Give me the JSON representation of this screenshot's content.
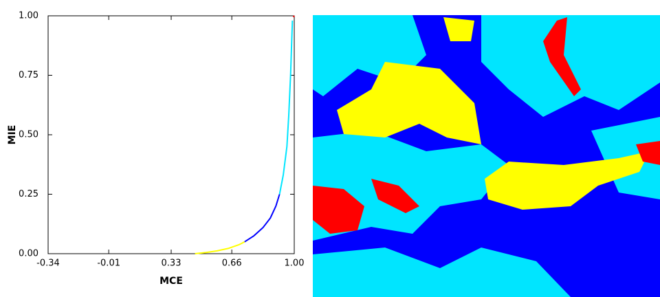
{
  "chart_data": {
    "type": "line",
    "x_label": "MCE",
    "y_label": "MIE",
    "xlim": [
      -0.34,
      1.0
    ],
    "xticks": [
      -0.34,
      -0.01,
      0.33,
      0.66,
      {
        "value": 1.0,
        "label": "1.00"
      }
    ],
    "ylim": [
      0,
      1.0
    ],
    "yticks": [
      {
        "value": 0,
        "label": "0.00"
      },
      0.25,
      {
        "value": 0.5,
        "label": "0.50"
      },
      0.75,
      {
        "value": 1.0,
        "label": "1.00"
      }
    ],
    "series": [
      {
        "color": "#ffff00",
        "x": [
          0.46,
          0.52,
          0.58,
          0.64,
          0.7,
          0.73
        ],
        "values": [
          0,
          0.005,
          0.012,
          0.022,
          0.038,
          0.05
        ]
      },
      {
        "color": "#0000ff",
        "x": [
          0.73,
          0.78,
          0.83,
          0.87,
          0.9,
          0.92
        ],
        "values": [
          0.05,
          0.075,
          0.11,
          0.15,
          0.2,
          0.25
        ]
      },
      {
        "color": "#00e5ff",
        "x": [
          0.92,
          0.94,
          0.96,
          0.97,
          0.98,
          0.99
        ],
        "values": [
          0.25,
          0.33,
          0.45,
          0.58,
          0.75,
          0.98
        ]
      },
      {
        "color": "#ff0000",
        "x": [
          0.995,
          1.0
        ],
        "values": [
          0.995,
          1.0
        ]
      }
    ]
  }
}
